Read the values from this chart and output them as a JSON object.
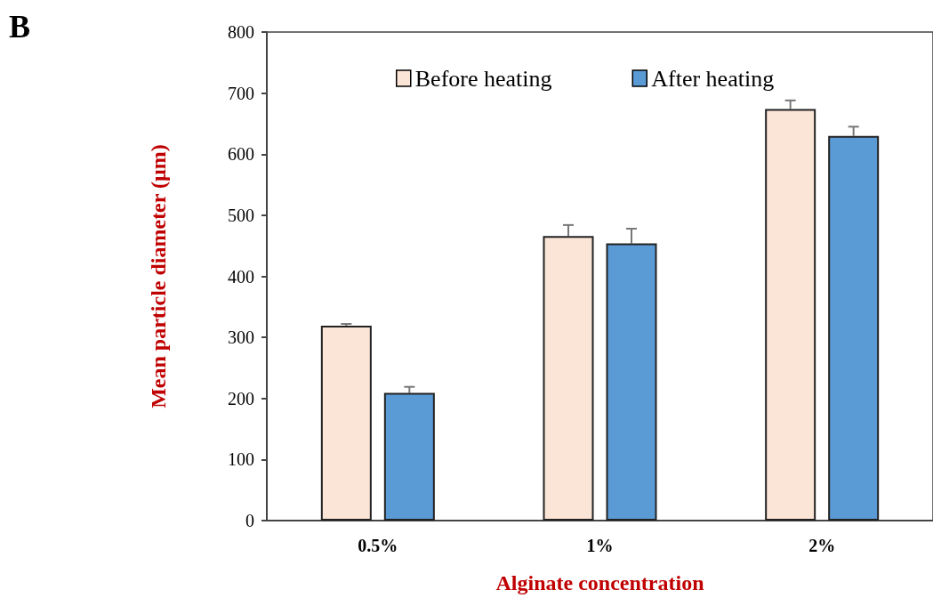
{
  "chart_data": {
    "type": "bar",
    "xlabel": "Alginate concentration",
    "ylabel": "Mean particle diameter (µm)",
    "annotations": [
      "B"
    ],
    "categories": [
      "0.5%",
      "1%",
      "2%"
    ],
    "series": [
      {
        "name": "Before heating",
        "color": "#fbe5d6",
        "values": [
          319,
          466,
          674
        ],
        "errors": [
          3,
          18,
          14
        ]
      },
      {
        "name": "After heating",
        "color": "#5b9bd5",
        "values": [
          209,
          454,
          630
        ],
        "errors": [
          10,
          24,
          15
        ]
      }
    ],
    "ylim": [
      0,
      800
    ],
    "yticks": [
      0,
      100,
      200,
      300,
      400,
      500,
      600,
      700,
      800
    ],
    "grid": false,
    "legend": "top"
  }
}
